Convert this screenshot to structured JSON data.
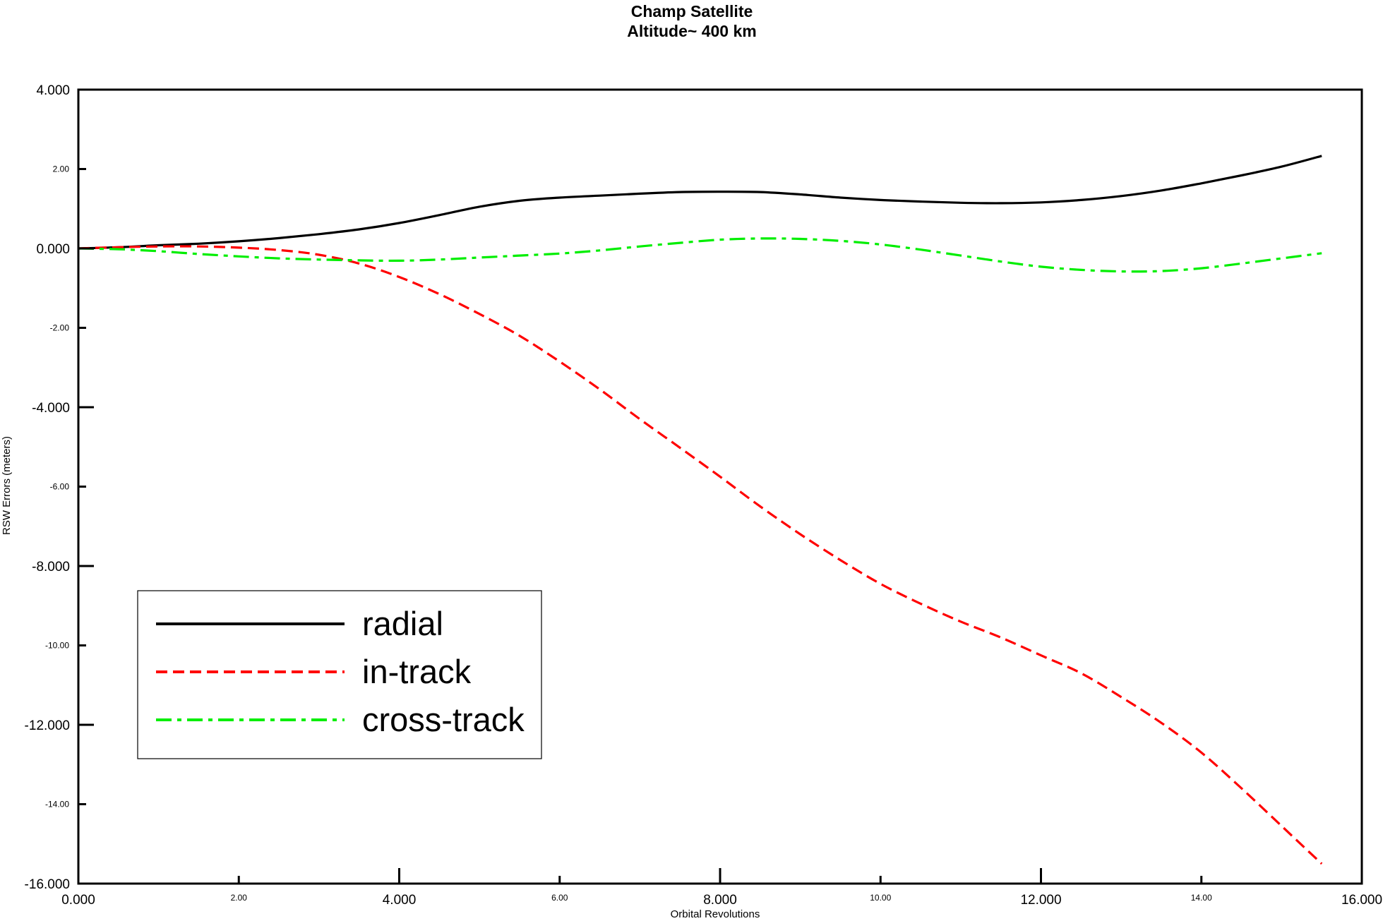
{
  "chart_data": {
    "type": "line",
    "title": "Champ Satellite",
    "subtitle": "Altitude~ 400 km",
    "xlabel": "Orbital Revolutions",
    "ylabel": "RSW Errors (meters)",
    "xlim": [
      0,
      16
    ],
    "ylim": [
      -16,
      4
    ],
    "grid": false,
    "legend_position": "bottom-left",
    "x_ticks": [
      {
        "value": 0,
        "label": "0.000",
        "major": true
      },
      {
        "value": 2,
        "label": "2.00",
        "major": false
      },
      {
        "value": 4,
        "label": "4.000",
        "major": true
      },
      {
        "value": 6,
        "label": "6.00",
        "major": false
      },
      {
        "value": 8,
        "label": "8.000",
        "major": true
      },
      {
        "value": 10,
        "label": "10.00",
        "major": false
      },
      {
        "value": 12,
        "label": "12.000",
        "major": true
      },
      {
        "value": 14,
        "label": "14.00",
        "major": false
      },
      {
        "value": 16,
        "label": "16.000",
        "major": true
      }
    ],
    "y_ticks": [
      {
        "value": 4,
        "label": "4.000",
        "major": true
      },
      {
        "value": 2,
        "label": "2.00",
        "major": false
      },
      {
        "value": 0,
        "label": "0.000",
        "major": true
      },
      {
        "value": -2,
        "label": "-2.00",
        "major": false
      },
      {
        "value": -4,
        "label": "-4.000",
        "major": true
      },
      {
        "value": -6,
        "label": "-6.00",
        "major": false
      },
      {
        "value": -8,
        "label": "-8.000",
        "major": true
      },
      {
        "value": -10,
        "label": "-10.00",
        "major": false
      },
      {
        "value": -12,
        "label": "-12.000",
        "major": true
      },
      {
        "value": -14,
        "label": "-14.00",
        "major": false
      },
      {
        "value": -16,
        "label": "-16.000",
        "major": true
      }
    ],
    "series": [
      {
        "name": "radial",
        "color": "#000000",
        "style": "solid",
        "x": [
          0,
          0.5,
          1,
          1.5,
          2,
          2.5,
          3,
          3.5,
          4,
          4.5,
          5,
          5.5,
          6,
          6.5,
          7,
          7.5,
          8,
          8.5,
          9,
          9.5,
          10,
          10.5,
          11,
          11.5,
          12,
          12.5,
          13,
          13.5,
          14,
          14.5,
          15,
          15.5
        ],
        "y": [
          0,
          0.03,
          0.08,
          0.12,
          0.18,
          0.26,
          0.36,
          0.48,
          0.64,
          0.84,
          1.05,
          1.2,
          1.28,
          1.33,
          1.38,
          1.42,
          1.43,
          1.42,
          1.36,
          1.28,
          1.22,
          1.18,
          1.15,
          1.14,
          1.16,
          1.22,
          1.32,
          1.46,
          1.64,
          1.84,
          2.06,
          2.33
        ]
      },
      {
        "name": "in-track",
        "color": "#ff0000",
        "style": "dashed",
        "x": [
          0,
          0.5,
          1,
          1.5,
          2,
          2.5,
          3,
          3.5,
          4,
          4.5,
          5,
          5.5,
          6,
          6.5,
          7,
          7.5,
          8,
          8.5,
          9,
          9.5,
          10,
          10.5,
          11,
          11.5,
          12,
          12.5,
          13,
          13.5,
          14,
          14.5,
          15,
          15.5
        ],
        "y": [
          0,
          0.03,
          0.05,
          0.05,
          0.02,
          -0.04,
          -0.16,
          -0.38,
          -0.72,
          -1.15,
          -1.65,
          -2.2,
          -2.85,
          -3.55,
          -4.3,
          -5.02,
          -5.75,
          -6.5,
          -7.2,
          -7.85,
          -8.45,
          -8.95,
          -9.4,
          -9.8,
          -10.25,
          -10.7,
          -11.3,
          -11.95,
          -12.7,
          -13.6,
          -14.55,
          -15.5
        ]
      },
      {
        "name": "cross-track",
        "color": "#00ee00",
        "style": "dashdot",
        "x": [
          0,
          0.5,
          1,
          1.5,
          2,
          2.5,
          3,
          3.5,
          4,
          4.5,
          5,
          5.5,
          6,
          6.5,
          7,
          7.5,
          8,
          8.5,
          9,
          9.5,
          10,
          10.5,
          11,
          11.5,
          12,
          12.5,
          13,
          13.5,
          14,
          14.5,
          15,
          15.5
        ],
        "y": [
          0,
          -0.02,
          -0.07,
          -0.14,
          -0.2,
          -0.25,
          -0.28,
          -0.3,
          -0.31,
          -0.28,
          -0.23,
          -0.18,
          -0.13,
          -0.05,
          0.05,
          0.14,
          0.22,
          0.25,
          0.24,
          0.19,
          0.1,
          -0.03,
          -0.18,
          -0.33,
          -0.46,
          -0.54,
          -0.58,
          -0.57,
          -0.5,
          -0.38,
          -0.25,
          -0.12
        ]
      }
    ]
  }
}
